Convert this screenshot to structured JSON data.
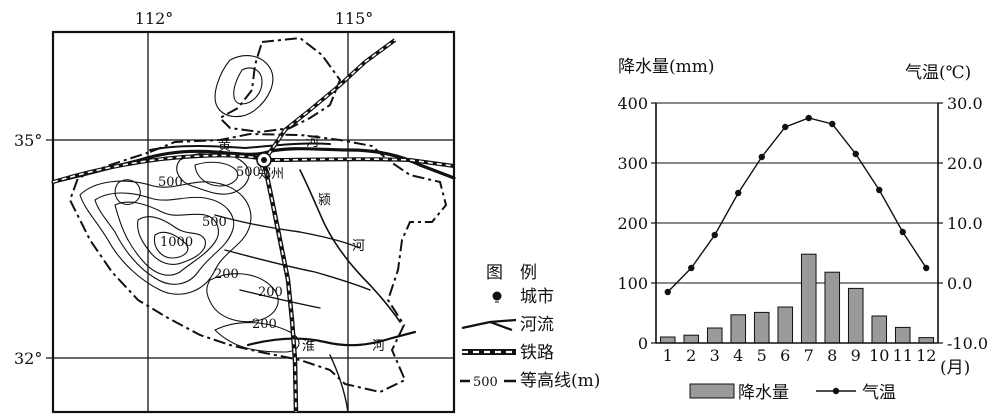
{
  "map": {
    "lon_labels": [
      "112°",
      "115°"
    ],
    "lat_labels": [
      "35°",
      "32°"
    ],
    "river_labels": [
      "黄",
      "河",
      "颍",
      "河",
      "淮",
      "河"
    ],
    "city_label": "郑州",
    "contour_labels": [
      "500",
      "500",
      "500",
      "1000",
      "200",
      "200",
      "200"
    ],
    "legend": {
      "title": "图　例",
      "city": "城市",
      "river": "河流",
      "railway": "铁路",
      "contour": "等高线(m)",
      "contour_sample": "500"
    }
  },
  "chart_data": {
    "type": "bar+line",
    "categories": [
      "1",
      "2",
      "3",
      "4",
      "5",
      "6",
      "7",
      "8",
      "9",
      "10",
      "11",
      "12"
    ],
    "x_unit": "(月)",
    "left_axis": {
      "label": "降水量(mm)",
      "ylim": [
        0,
        400
      ],
      "ticks": [
        "0",
        "100",
        "200",
        "300",
        "400"
      ]
    },
    "right_axis": {
      "label": "气温(℃)",
      "ylim": [
        -10,
        30
      ],
      "ticks": [
        "-10.0",
        "0.0",
        "10.0",
        "20.0",
        "30.0"
      ]
    },
    "grid": true,
    "series": [
      {
        "name": "降水量",
        "type": "bar",
        "axis": "left",
        "values": [
          10,
          13,
          25,
          47,
          51,
          60,
          148,
          118,
          91,
          45,
          26,
          9
        ]
      },
      {
        "name": "气温",
        "type": "line",
        "axis": "right",
        "values": [
          -1.5,
          2.5,
          8,
          15,
          21,
          26,
          27.5,
          26.5,
          21.5,
          15.5,
          8.5,
          2.5
        ]
      }
    ],
    "legend_position": "bottom"
  }
}
